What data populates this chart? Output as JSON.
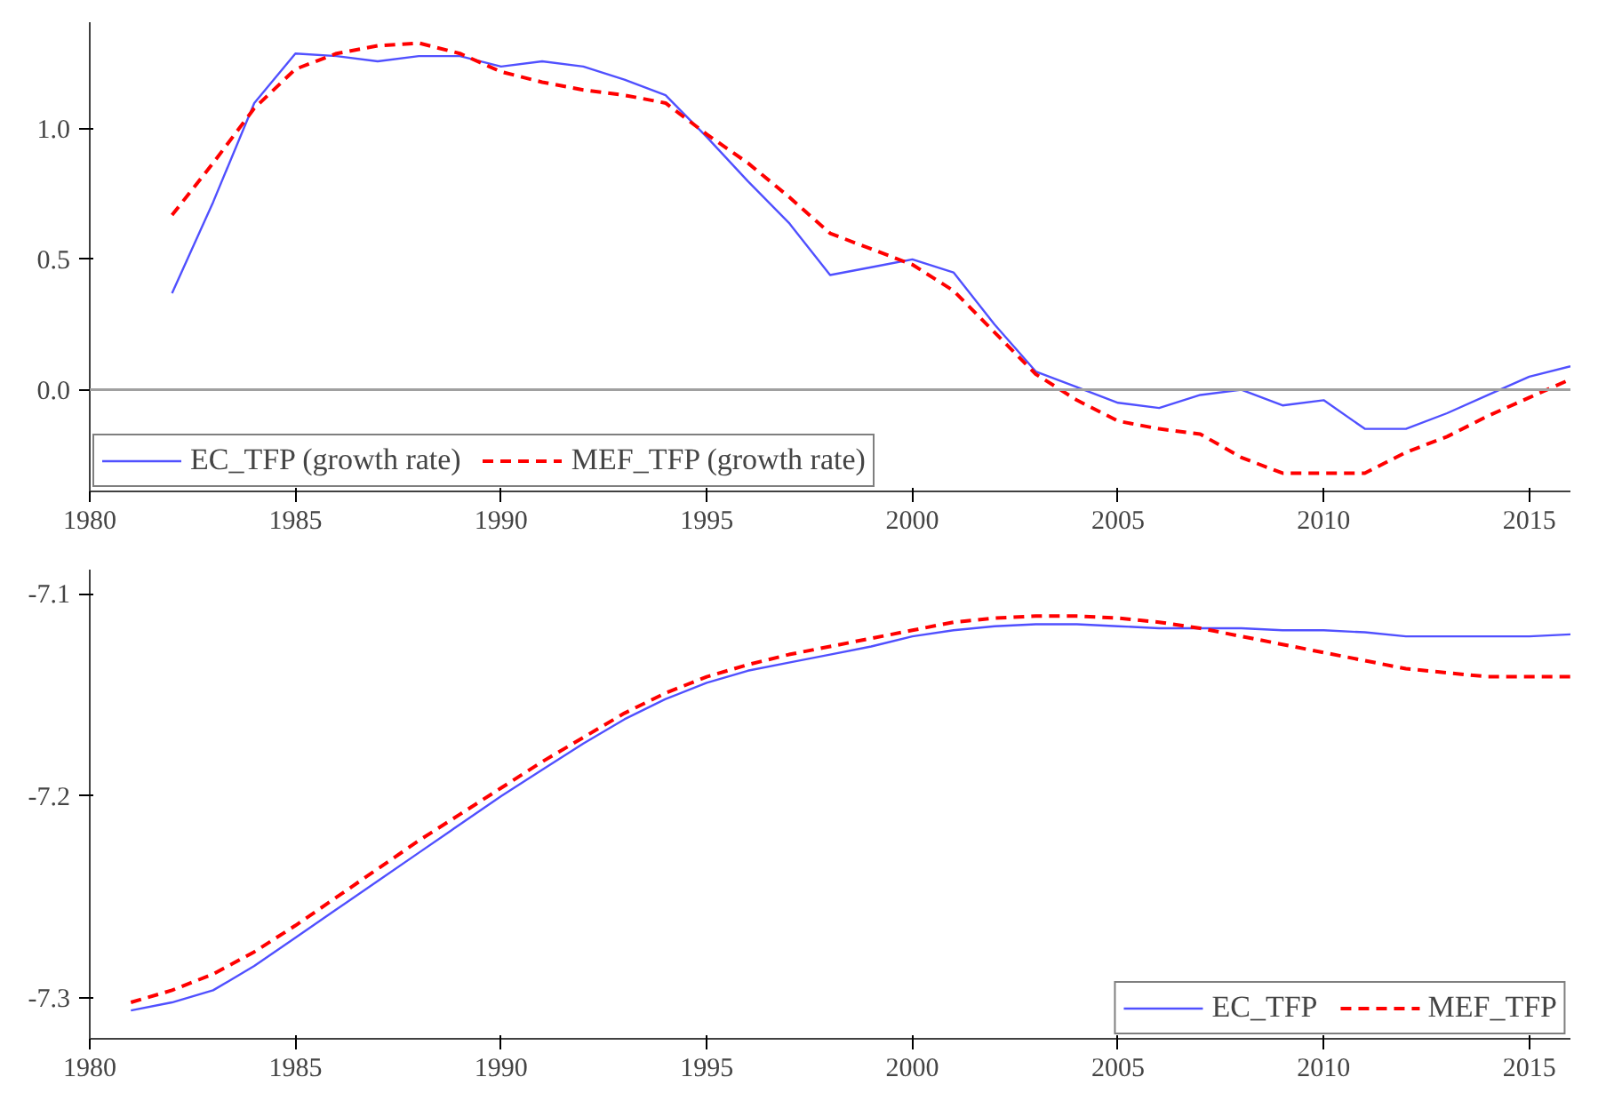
{
  "chart_data": [
    {
      "type": "line",
      "x": [
        1982,
        1983,
        1984,
        1985,
        1986,
        1987,
        1988,
        1989,
        1990,
        1991,
        1992,
        1993,
        1994,
        1995,
        1996,
        1997,
        1998,
        1999,
        2000,
        2001,
        2002,
        2003,
        2004,
        2005,
        2006,
        2007,
        2008,
        2009,
        2010,
        2011,
        2012,
        2013,
        2014,
        2015,
        2016
      ],
      "series": [
        {
          "name": "EC_TFP (growth rate)",
          "color": "#5050ff",
          "line_style": "solid",
          "values": [
            0.37,
            0.72,
            1.1,
            1.29,
            1.28,
            1.26,
            1.28,
            1.28,
            1.24,
            1.26,
            1.24,
            1.19,
            1.13,
            0.97,
            0.8,
            0.64,
            0.44,
            0.47,
            0.5,
            0.45,
            0.25,
            0.07,
            0.01,
            -0.05,
            -0.07,
            -0.02,
            0.0,
            -0.06,
            -0.04,
            -0.15,
            -0.15,
            -0.09,
            -0.02,
            0.05,
            0.09
          ]
        },
        {
          "name": "MEF_TFP (growth rate)",
          "color": "#ff0000",
          "line_style": "dashed",
          "values": [
            0.67,
            0.87,
            1.08,
            1.23,
            1.29,
            1.32,
            1.33,
            1.29,
            1.22,
            1.18,
            1.15,
            1.13,
            1.1,
            0.98,
            0.87,
            0.74,
            0.6,
            0.54,
            0.48,
            0.38,
            0.22,
            0.06,
            -0.04,
            -0.12,
            -0.15,
            -0.17,
            -0.26,
            -0.32,
            -0.32,
            -0.32,
            -0.24,
            -0.18,
            -0.1,
            -0.03,
            0.04
          ]
        }
      ],
      "xlim": [
        1980,
        2016
      ],
      "xticks": [
        1980,
        1985,
        1990,
        1995,
        2000,
        2005,
        2010,
        2015
      ],
      "ylim": [
        -0.39,
        1.41
      ],
      "yticks": [
        {
          "value": 0,
          "label": "0.0"
        },
        {
          "value": 0.5,
          "label": "0.5"
        },
        {
          "value": 1,
          "label": "1.0"
        }
      ],
      "ref_lines": [
        {
          "axis": "y",
          "value": 0,
          "color": "#a0a0a0"
        }
      ],
      "grid": false,
      "legend": "bottom left"
    },
    {
      "type": "line",
      "x": [
        1981,
        1982,
        1983,
        1984,
        1985,
        1986,
        1987,
        1988,
        1989,
        1990,
        1991,
        1992,
        1993,
        1994,
        1995,
        1996,
        1997,
        1998,
        1999,
        2000,
        2001,
        2002,
        2003,
        2004,
        2005,
        2006,
        2007,
        2008,
        2009,
        2010,
        2011,
        2012,
        2013,
        2014,
        2015,
        2016
      ],
      "series": [
        {
          "name": "EC_TFP",
          "color": "#5050ff",
          "line_style": "solid",
          "values": [
            -7.306,
            -7.302,
            -7.296,
            -7.284,
            -7.27,
            -7.256,
            -7.242,
            -7.228,
            -7.214,
            -7.2,
            -7.187,
            -7.174,
            -7.162,
            -7.152,
            -7.144,
            -7.138,
            -7.134,
            -7.13,
            -7.126,
            -7.121,
            -7.118,
            -7.116,
            -7.115,
            -7.115,
            -7.116,
            -7.117,
            -7.117,
            -7.117,
            -7.118,
            -7.118,
            -7.119,
            -7.121,
            -7.121,
            -7.121,
            -7.121,
            -7.12
          ]
        },
        {
          "name": "MEF_TFP",
          "color": "#ff0000",
          "line_style": "dashed",
          "values": [
            -7.302,
            -7.296,
            -7.288,
            -7.277,
            -7.264,
            -7.25,
            -7.236,
            -7.222,
            -7.209,
            -7.196,
            -7.183,
            -7.171,
            -7.159,
            -7.149,
            -7.141,
            -7.135,
            -7.13,
            -7.126,
            -7.122,
            -7.118,
            -7.114,
            -7.112,
            -7.111,
            -7.111,
            -7.112,
            -7.114,
            -7.117,
            -7.121,
            -7.125,
            -7.129,
            -7.133,
            -7.137,
            -7.139,
            -7.141,
            -7.141,
            -7.141
          ]
        }
      ],
      "xlim": [
        1980,
        2016
      ],
      "xticks": [
        1980,
        1985,
        1990,
        1995,
        2000,
        2005,
        2010,
        2015
      ],
      "ylim": [
        -7.32,
        -7.088
      ],
      "yticks": [
        {
          "value": -7.3,
          "label": "-7.3"
        },
        {
          "value": -7.2,
          "label": "-7.2"
        },
        {
          "value": -7.1,
          "label": "-7.1"
        }
      ],
      "grid": false,
      "legend": "bottom right"
    }
  ]
}
